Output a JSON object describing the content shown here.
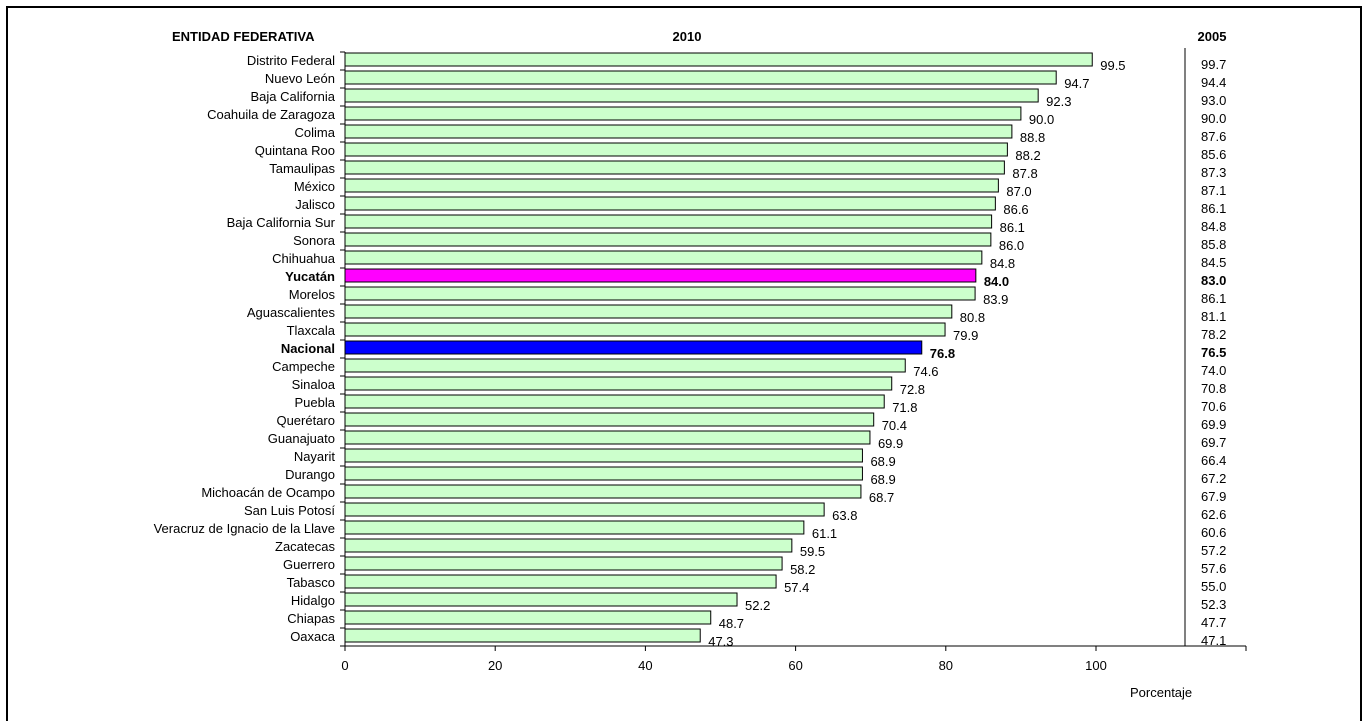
{
  "chart_data": {
    "type": "bar",
    "orientation": "horizontal",
    "column_header": "ENTIDAD FEDERATIVA",
    "series_2010_header": "2010",
    "series_2005_header": "2005",
    "xlabel": "Porcentaje",
    "xlim": [
      0,
      120
    ],
    "xticks": [
      "0",
      "20",
      "40",
      "60",
      "80",
      "100"
    ],
    "grid": false,
    "colors": {
      "default": "#ccffcc",
      "highlight": "#ff00ff",
      "national": "#0000ff",
      "stroke": "#000000"
    },
    "rows": [
      {
        "entity": "Distrito Federal",
        "v2010": "99.5",
        "v2005": "99.7"
      },
      {
        "entity": "Nuevo León",
        "v2010": "94.7",
        "v2005": "94.4"
      },
      {
        "entity": "Baja California",
        "v2010": "92.3",
        "v2005": "93.0"
      },
      {
        "entity": "Coahuila de Zaragoza",
        "v2010": "90.0",
        "v2005": "90.0"
      },
      {
        "entity": "Colima",
        "v2010": "88.8",
        "v2005": "87.6"
      },
      {
        "entity": "Quintana Roo",
        "v2010": "88.2",
        "v2005": "85.6"
      },
      {
        "entity": "Tamaulipas",
        "v2010": "87.8",
        "v2005": "87.3"
      },
      {
        "entity": "México",
        "v2010": "87.0",
        "v2005": "87.1"
      },
      {
        "entity": "Jalisco",
        "v2010": "86.6",
        "v2005": "86.1"
      },
      {
        "entity": "Baja California Sur",
        "v2010": "86.1",
        "v2005": "84.8"
      },
      {
        "entity": "Sonora",
        "v2010": "86.0",
        "v2005": "85.8"
      },
      {
        "entity": "Chihuahua",
        "v2010": "84.8",
        "v2005": "84.5"
      },
      {
        "entity": "Yucatán",
        "v2010": "84.0",
        "v2005": "83.0",
        "kind": "highlight"
      },
      {
        "entity": "Morelos",
        "v2010": "83.9",
        "v2005": "86.1"
      },
      {
        "entity": "Aguascalientes",
        "v2010": "80.8",
        "v2005": "81.1"
      },
      {
        "entity": "Tlaxcala",
        "v2010": "79.9",
        "v2005": "78.2"
      },
      {
        "entity": "Nacional",
        "v2010": "76.8",
        "v2005": "76.5",
        "kind": "national"
      },
      {
        "entity": "Campeche",
        "v2010": "74.6",
        "v2005": "74.0"
      },
      {
        "entity": "Sinaloa",
        "v2010": "72.8",
        "v2005": "70.8"
      },
      {
        "entity": "Puebla",
        "v2010": "71.8",
        "v2005": "70.6"
      },
      {
        "entity": "Querétaro",
        "v2010": "70.4",
        "v2005": "69.9"
      },
      {
        "entity": "Guanajuato",
        "v2010": "69.9",
        "v2005": "69.7"
      },
      {
        "entity": "Nayarit",
        "v2010": "68.9",
        "v2005": "66.4"
      },
      {
        "entity": "Durango",
        "v2010": "68.9",
        "v2005": "67.2"
      },
      {
        "entity": "Michoacán de Ocampo",
        "v2010": "68.7",
        "v2005": "67.9"
      },
      {
        "entity": "San Luis Potosí",
        "v2010": "63.8",
        "v2005": "62.6"
      },
      {
        "entity": "Veracruz de Ignacio de la Llave",
        "v2010": "61.1",
        "v2005": "60.6"
      },
      {
        "entity": "Zacatecas",
        "v2010": "59.5",
        "v2005": "57.2"
      },
      {
        "entity": "Guerrero",
        "v2010": "58.2",
        "v2005": "57.6"
      },
      {
        "entity": "Tabasco",
        "v2010": "57.4",
        "v2005": "55.0"
      },
      {
        "entity": "Hidalgo",
        "v2010": "52.2",
        "v2005": "52.3"
      },
      {
        "entity": "Chiapas",
        "v2010": "48.7",
        "v2005": "47.7"
      },
      {
        "entity": "Oaxaca",
        "v2010": "47.3",
        "v2005": "47.1"
      }
    ]
  }
}
